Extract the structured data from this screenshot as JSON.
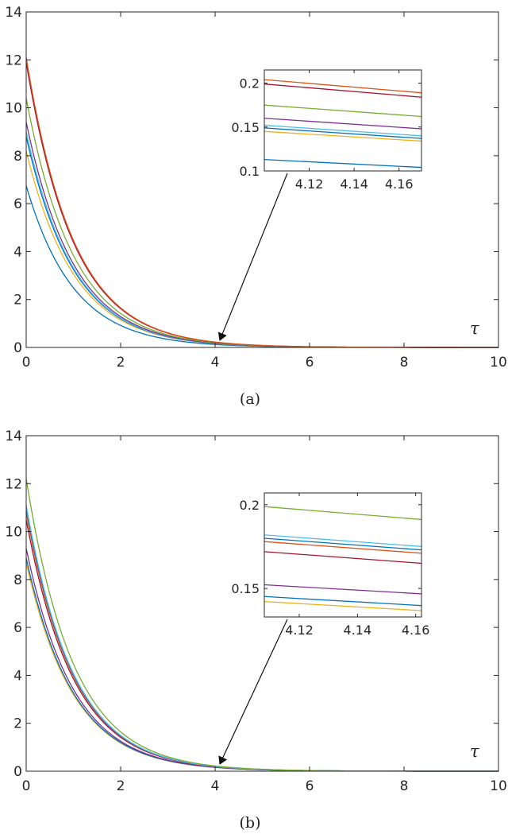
{
  "chart_data": [
    {
      "type": "line",
      "caption": "(a)",
      "xlabel": "τ",
      "xlim": [
        0,
        10
      ],
      "ylim": [
        0,
        14
      ],
      "xticks": [
        "0",
        "2",
        "4",
        "6",
        "8",
        "10"
      ],
      "yticks": [
        "0",
        "2",
        "4",
        "6",
        "8",
        "10",
        "12",
        "14"
      ],
      "grid": false,
      "series": [
        {
          "color": "#0072BD",
          "y0": 6.75,
          "y_at_4_1": 0.113,
          "y_at_4_17": 0.104
        },
        {
          "color": "#EDB120",
          "y0": 8.2,
          "y_at_4_1": 0.145,
          "y_at_4_17": 0.134
        },
        {
          "color": "#0072BD",
          "y0": 8.8,
          "y_at_4_1": 0.149,
          "y_at_4_17": 0.137
        },
        {
          "color": "#4DBEEE",
          "y0": 9.0,
          "y_at_4_1": 0.152,
          "y_at_4_17": 0.14
        },
        {
          "color": "#7E2F8E",
          "y0": 9.4,
          "y_at_4_1": 0.16,
          "y_at_4_17": 0.148
        },
        {
          "color": "#77AC30",
          "y0": 10.4,
          "y_at_4_1": 0.175,
          "y_at_4_17": 0.162
        },
        {
          "color": "#A2142F",
          "y0": 11.9,
          "y_at_4_1": 0.199,
          "y_at_4_17": 0.184
        },
        {
          "color": "#D95319",
          "y0": 12.1,
          "y_at_4_1": 0.204,
          "y_at_4_17": 0.189
        }
      ],
      "inset": {
        "xlim": [
          4.1,
          4.17
        ],
        "ylim": [
          0.1,
          0.215
        ],
        "xticks": [
          "4.12",
          "4.14",
          "4.16"
        ],
        "yticks": [
          "0.1",
          "0.15",
          "0.2"
        ],
        "arrow_to_x": 4.1
      }
    },
    {
      "type": "line",
      "caption": "(b)",
      "xlabel": "τ",
      "xlim": [
        0,
        10
      ],
      "ylim": [
        0,
        14
      ],
      "xticks": [
        "0",
        "2",
        "4",
        "6",
        "8",
        "10"
      ],
      "yticks": [
        "0",
        "2",
        "4",
        "6",
        "8",
        "10",
        "12",
        "14"
      ],
      "grid": false,
      "series": [
        {
          "color": "#EDB120",
          "y0": 8.7,
          "y_at_4_1": 0.143,
          "y_at_4_17": 0.136
        },
        {
          "color": "#0072BD",
          "y0": 8.9,
          "y_at_4_1": 0.146,
          "y_at_4_17": 0.139
        },
        {
          "color": "#7E2F8E",
          "y0": 9.3,
          "y_at_4_1": 0.153,
          "y_at_4_17": 0.146
        },
        {
          "color": "#A2142F",
          "y0": 10.5,
          "y_at_4_1": 0.173,
          "y_at_4_17": 0.164
        },
        {
          "color": "#D95319",
          "y0": 10.8,
          "y_at_4_1": 0.179,
          "y_at_4_17": 0.17
        },
        {
          "color": "#0072BD",
          "y0": 11.0,
          "y_at_4_1": 0.181,
          "y_at_4_17": 0.172
        },
        {
          "color": "#4DBEEE",
          "y0": 11.1,
          "y_at_4_1": 0.183,
          "y_at_4_17": 0.174
        },
        {
          "color": "#77AC30",
          "y0": 12.2,
          "y_at_4_1": 0.2,
          "y_at_4_17": 0.19
        }
      ],
      "inset": {
        "xlim": [
          4.108,
          4.162
        ],
        "ylim": [
          0.133,
          0.207
        ],
        "xticks": [
          "4.12",
          "4.14",
          "4.16"
        ],
        "yticks": [
          "0.15",
          "0.2"
        ],
        "arrow_to_x": 4.1
      }
    }
  ]
}
